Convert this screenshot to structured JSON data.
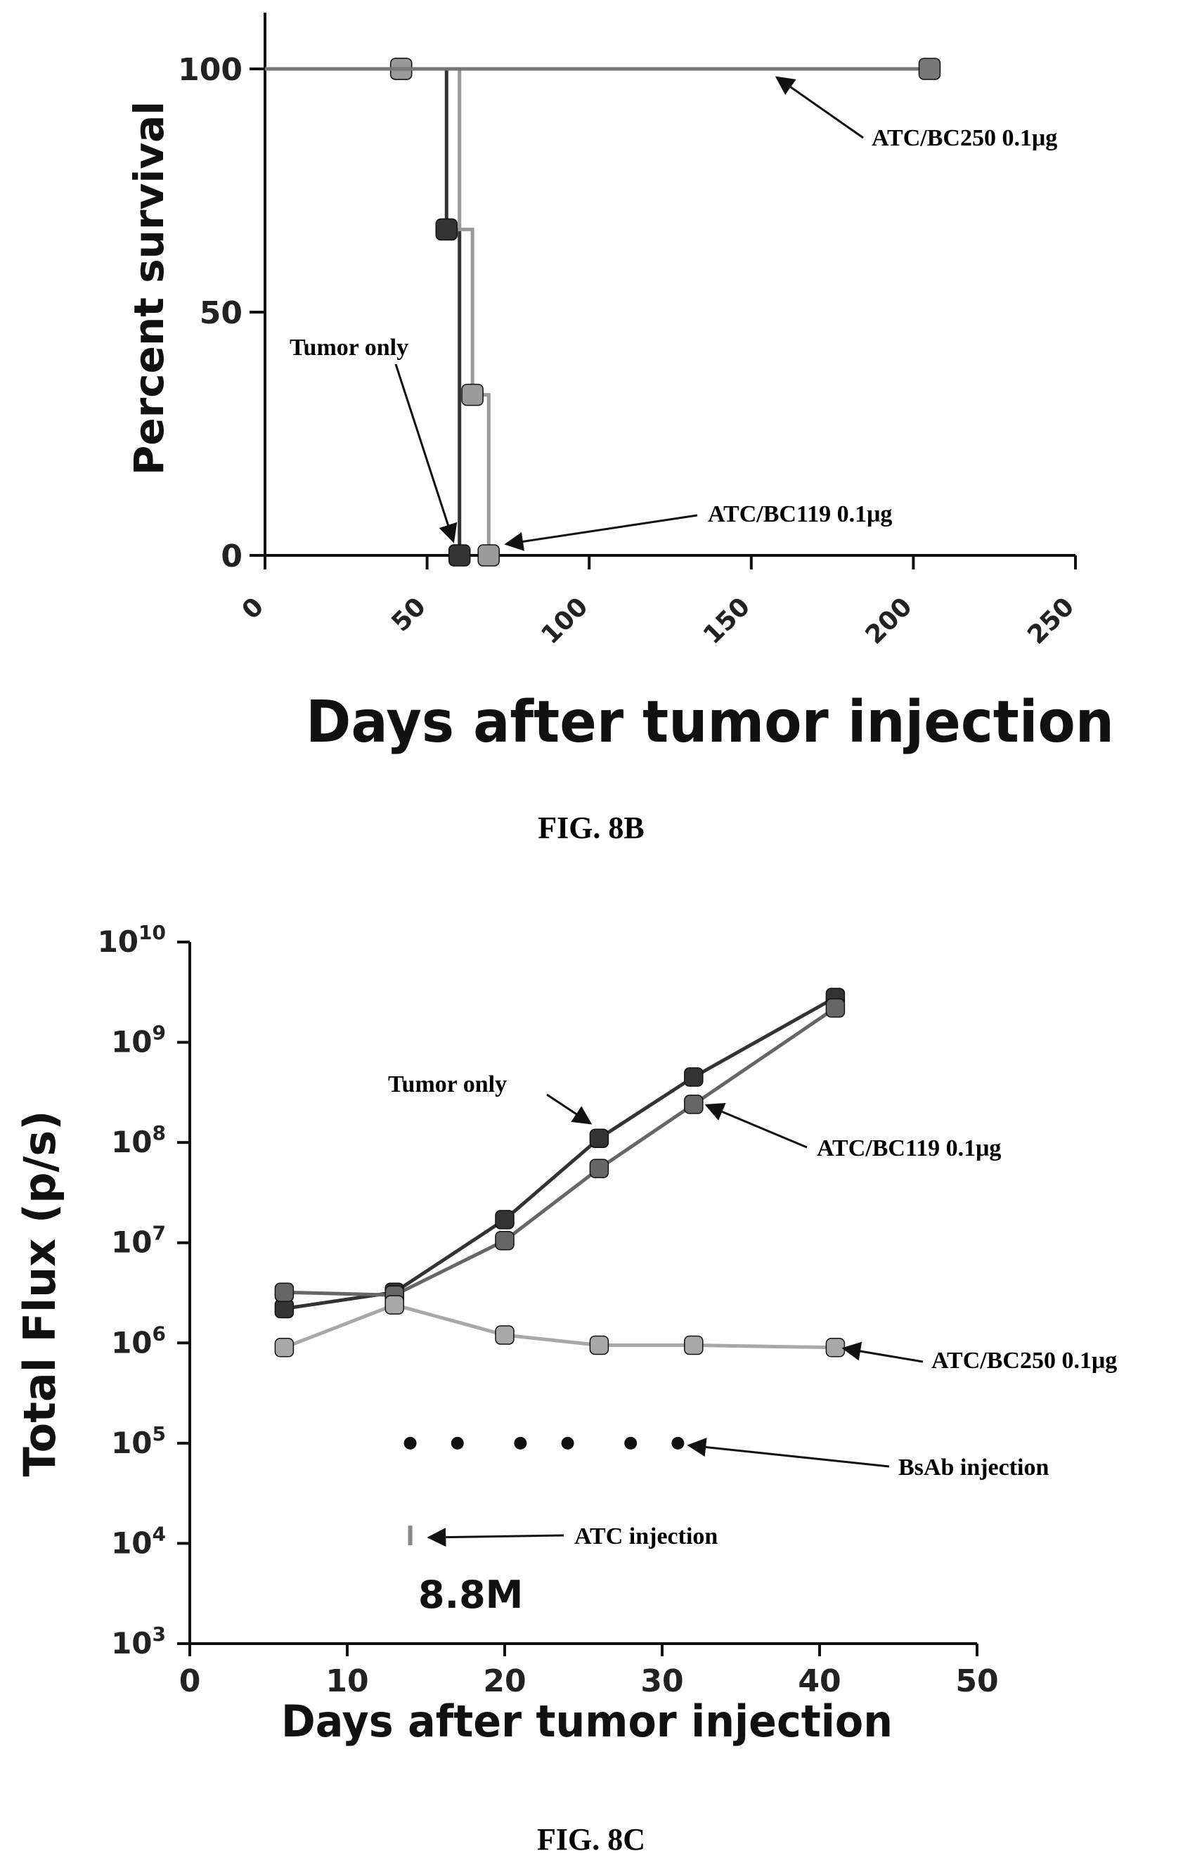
{
  "charts": [
    {
      "caption": "FIG. 8B",
      "chart_data": {
        "type": "line",
        "subtype": "kaplan-meier survival step",
        "xlabel": "Days after tumor injection",
        "ylabel": "Percent survival",
        "xlim": [
          0,
          250
        ],
        "ylim": [
          0,
          100
        ],
        "xticks": [
          "0",
          "50",
          "100",
          "150",
          "200",
          "250"
        ],
        "yticks": [
          "0",
          "50",
          "100"
        ],
        "grid": false,
        "series": [
          {
            "name": "Tumor only",
            "color": "#333333",
            "points": [
              [
                0,
                100
              ],
              [
                42,
                100
              ],
              [
                56,
                100
              ],
              [
                56,
                67
              ],
              [
                60,
                67
              ],
              [
                60,
                0
              ]
            ],
            "markers": [
              [
                42,
                100
              ],
              [
                56,
                67
              ],
              [
                60,
                0
              ]
            ]
          },
          {
            "name": "ATC/BC119 0.1μg",
            "color": "#9a9a9a",
            "points": [
              [
                0,
                100
              ],
              [
                60,
                100
              ],
              [
                60,
                67
              ],
              [
                64,
                67
              ],
              [
                64,
                33
              ],
              [
                69,
                33
              ],
              [
                69,
                0
              ]
            ],
            "markers": [
              [
                42,
                100
              ],
              [
                64,
                33
              ],
              [
                69,
                0
              ]
            ]
          },
          {
            "name": "ATC/BC250 0.1μg",
            "color": "#777777",
            "points": [
              [
                0,
                100
              ],
              [
                205,
                100
              ]
            ],
            "markers": [
              [
                205,
                100
              ]
            ]
          }
        ],
        "annotations": [
          {
            "text": "ATC/BC250 0.1μg"
          },
          {
            "text": "Tumor only"
          },
          {
            "text": "ATC/BC119 0.1μg"
          }
        ]
      }
    },
    {
      "caption": "FIG. 8C",
      "chart_data": {
        "type": "line",
        "yscale": "log10",
        "xlabel": "Days after tumor injection",
        "ylabel": "Total Flux (p/s)",
        "xlim": [
          0,
          50
        ],
        "ylim": [
          "10^3",
          "10^10"
        ],
        "xticks": [
          "0",
          "10",
          "20",
          "30",
          "40",
          "50"
        ],
        "yticks": [
          "10^3",
          "10^4",
          "10^5",
          "10^6",
          "10^7",
          "10^8",
          "10^9",
          "10^10"
        ],
        "grid": false,
        "series": [
          {
            "name": "Tumor only",
            "color": "#333333",
            "x": [
              6,
              13,
              20,
              26,
              32,
              41
            ],
            "y": [
              2200000.0,
              3200000.0,
              17000000.0,
              110000000.0,
              450000000.0,
              2800000000.0
            ]
          },
          {
            "name": "ATC/BC119 0.1μg",
            "color": "#666666",
            "x": [
              6,
              13,
              20,
              26,
              32,
              41
            ],
            "y": [
              3200000.0,
              3000000.0,
              10500000.0,
              55000000.0,
              240000000.0,
              2200000000.0
            ]
          },
          {
            "name": "ATC/BC250 0.1μg",
            "color": "#a8a8a8",
            "x": [
              6,
              13,
              20,
              26,
              32,
              41
            ],
            "y": [
              900000.0,
              2400000.0,
              1200000.0,
              950000.0,
              950000.0,
              900000.0
            ]
          }
        ],
        "bsab_injection_days": [
          14,
          17,
          21,
          24,
          28,
          31
        ],
        "bsab_level": 100000.0,
        "atc_injection_day": 14,
        "atc_level": 12000.0,
        "annotations": [
          {
            "text": "Tumor only"
          },
          {
            "text": "ATC/BC119 0.1μg"
          },
          {
            "text": "ATC/BC250 0.1μg"
          },
          {
            "text": "BsAb injection"
          },
          {
            "text": "ATC injection"
          },
          {
            "text": "8.8M"
          }
        ]
      }
    }
  ]
}
